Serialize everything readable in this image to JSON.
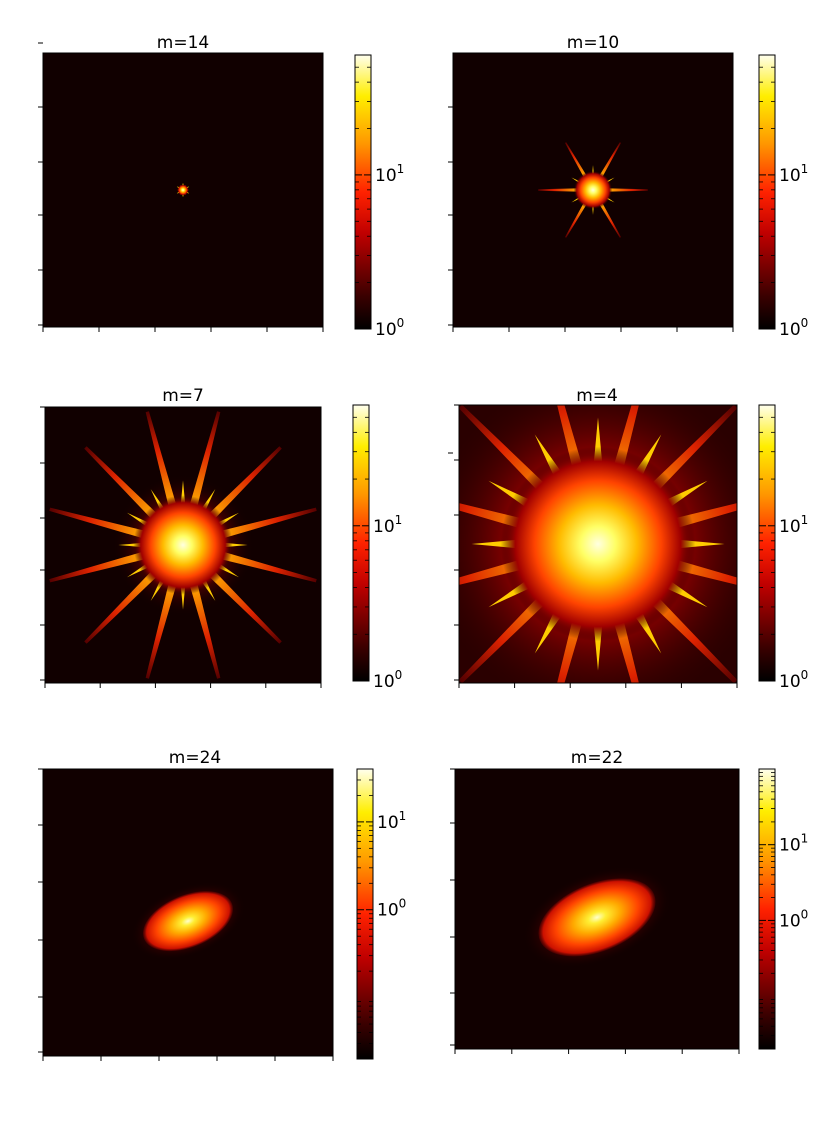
{
  "chart_data": [
    {
      "type": "heatmap",
      "title": "m=14",
      "pattern": "star",
      "star_rays": 6,
      "star_extent": 0.02,
      "core_extent": 0.02,
      "colormap": "hot",
      "colorbar": {
        "scale": "log",
        "ticks": [
          {
            "base": "10",
            "exp": "1",
            "value": 10
          },
          {
            "base": "10",
            "exp": "0",
            "value": 1
          }
        ],
        "vmin": 1,
        "vmax": 60
      }
    },
    {
      "type": "heatmap",
      "title": "m=10",
      "pattern": "star",
      "star_rays": 6,
      "star_extent": 0.2,
      "core_extent": 0.07,
      "colormap": "hot",
      "colorbar": {
        "scale": "log",
        "ticks": [
          {
            "base": "10",
            "exp": "1",
            "value": 10
          },
          {
            "base": "10",
            "exp": "0",
            "value": 1
          }
        ],
        "vmin": 1,
        "vmax": 60
      }
    },
    {
      "type": "heatmap",
      "title": "m=7",
      "pattern": "star",
      "star_rays": 12,
      "star_extent": 0.5,
      "core_extent": 0.18,
      "colormap": "hot",
      "colorbar": {
        "scale": "log",
        "ticks": [
          {
            "base": "10",
            "exp": "1",
            "value": 10
          },
          {
            "base": "10",
            "exp": "0",
            "value": 1
          }
        ],
        "vmin": 1,
        "vmax": 60
      }
    },
    {
      "type": "heatmap",
      "title": "m=4",
      "pattern": "star",
      "star_rays": 12,
      "star_extent": 0.7,
      "core_extent": 0.35,
      "colormap": "hot",
      "colorbar": {
        "scale": "log",
        "ticks": [
          {
            "base": "10",
            "exp": "1",
            "value": 10
          },
          {
            "base": "10",
            "exp": "0",
            "value": 1
          }
        ],
        "vmin": 1,
        "vmax": 60
      }
    },
    {
      "type": "heatmap",
      "title": "m=24",
      "pattern": "ellipse",
      "core_extent": 0.15,
      "colormap": "hot",
      "colorbar": {
        "scale": "log",
        "ticks": [
          {
            "base": "10",
            "exp": "1",
            "value": 10
          },
          {
            "base": "10",
            "exp": "0",
            "value": 1
          }
        ],
        "vmin": 0.02,
        "vmax": 40
      }
    },
    {
      "type": "heatmap",
      "title": "m=22",
      "pattern": "ellipse",
      "core_extent": 0.2,
      "colormap": "hot",
      "colorbar": {
        "scale": "log",
        "ticks": [
          {
            "base": "10",
            "exp": "1",
            "value": 10
          },
          {
            "base": "10",
            "exp": "0",
            "value": 1
          }
        ],
        "vmin": 0.02,
        "vmax": 100
      }
    }
  ]
}
